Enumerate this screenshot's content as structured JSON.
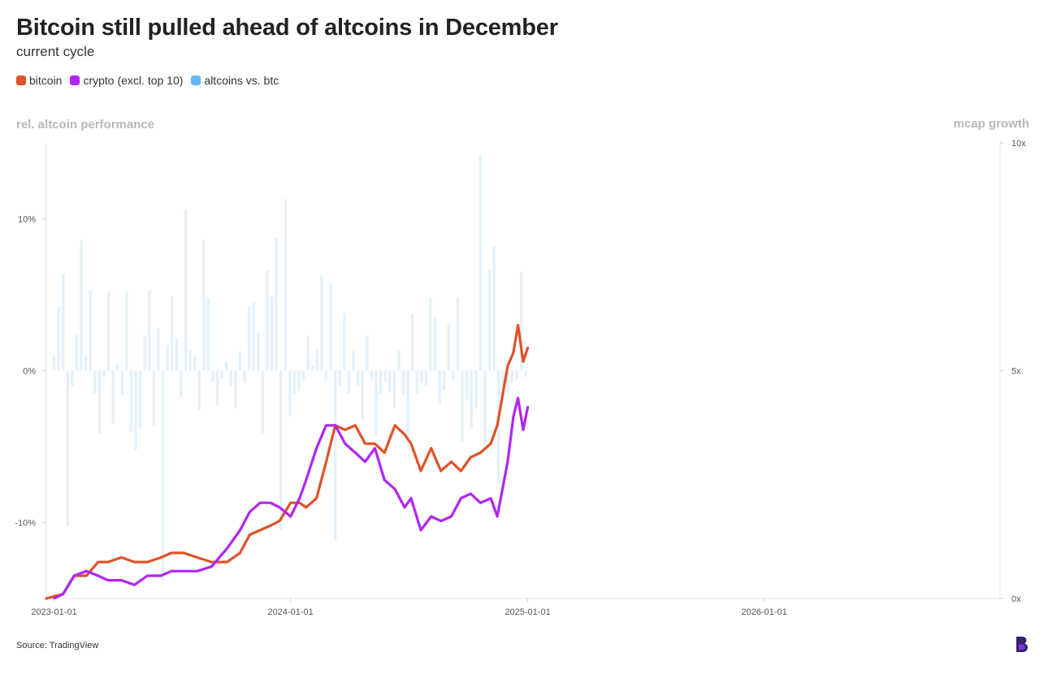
{
  "title": "Bitcoin still pulled ahead of altcoins in December",
  "subtitle": "current cycle",
  "legend": [
    {
      "label": "bitcoin",
      "color": "#e0522a"
    },
    {
      "label": "crypto (excl. top 10)",
      "color": "#b026f2"
    },
    {
      "label": "altcoins vs. btc",
      "color": "#63b8f5"
    }
  ],
  "axis_title_left": "rel. altcoin performance",
  "axis_title_right": "mcap growth",
  "source": "Source: TradingView",
  "chart_data": {
    "type": "line",
    "x_ticks": [
      "2023-01-01",
      "2024-01-01",
      "2025-01-01",
      "2026-01-01"
    ],
    "xlim": [
      "2022-12-20",
      "2026-12-31"
    ],
    "left_axis": {
      "ticks": [
        "10%",
        "0%",
        "-10%"
      ],
      "tick_values": [
        10,
        0,
        -10
      ],
      "ylim": [
        -15,
        15
      ]
    },
    "right_axis": {
      "ticks": [
        "10x",
        "5x",
        "0x"
      ],
      "tick_values": [
        10,
        5,
        0
      ],
      "ylim": [
        0,
        10
      ]
    },
    "series": [
      {
        "name": "bitcoin",
        "axis": "right",
        "color": "#e0522a",
        "x": [
          "2022-12-20",
          "2023-01-15",
          "2023-02-01",
          "2023-02-20",
          "2023-03-10",
          "2023-03-25",
          "2023-04-15",
          "2023-05-05",
          "2023-05-25",
          "2023-06-15",
          "2023-07-01",
          "2023-07-20",
          "2023-08-10",
          "2023-09-01",
          "2023-09-25",
          "2023-10-15",
          "2023-10-30",
          "2023-11-15",
          "2023-12-01",
          "2023-12-15",
          "2024-01-01",
          "2024-01-15",
          "2024-01-25",
          "2024-02-10",
          "2024-02-25",
          "2024-03-10",
          "2024-03-25",
          "2024-04-10",
          "2024-04-25",
          "2024-05-10",
          "2024-05-25",
          "2024-06-10",
          "2024-06-25",
          "2024-07-05",
          "2024-07-20",
          "2024-08-05",
          "2024-08-20",
          "2024-09-05",
          "2024-09-20",
          "2024-10-05",
          "2024-10-20",
          "2024-11-05",
          "2024-11-15",
          "2024-12-01",
          "2024-12-10",
          "2024-12-17",
          "2024-12-25",
          "2025-01-01"
        ],
        "y": [
          0.0,
          0.1,
          0.5,
          0.5,
          0.8,
          0.8,
          0.9,
          0.8,
          0.8,
          0.9,
          1.0,
          1.0,
          0.9,
          0.8,
          0.8,
          1.0,
          1.4,
          1.5,
          1.6,
          1.7,
          2.1,
          2.1,
          2.0,
          2.2,
          3.0,
          3.8,
          3.7,
          3.8,
          3.4,
          3.4,
          3.2,
          3.8,
          3.6,
          3.4,
          2.8,
          3.3,
          2.8,
          3.0,
          2.8,
          3.1,
          3.2,
          3.4,
          3.8,
          5.1,
          5.4,
          6.0,
          5.2,
          5.5
        ]
      },
      {
        "name": "crypto (excl. top 10)",
        "axis": "right",
        "color": "#b026f2",
        "x": [
          "2023-01-01",
          "2023-01-15",
          "2023-02-01",
          "2023-02-20",
          "2023-03-10",
          "2023-03-25",
          "2023-04-15",
          "2023-05-05",
          "2023-05-25",
          "2023-06-15",
          "2023-07-01",
          "2023-07-20",
          "2023-08-10",
          "2023-09-01",
          "2023-09-25",
          "2023-10-15",
          "2023-10-30",
          "2023-11-15",
          "2023-12-01",
          "2023-12-15",
          "2024-01-01",
          "2024-01-15",
          "2024-01-25",
          "2024-02-10",
          "2024-02-25",
          "2024-03-10",
          "2024-03-25",
          "2024-04-10",
          "2024-04-25",
          "2024-05-10",
          "2024-05-25",
          "2024-06-10",
          "2024-06-25",
          "2024-07-05",
          "2024-07-20",
          "2024-08-05",
          "2024-08-20",
          "2024-09-05",
          "2024-09-20",
          "2024-10-05",
          "2024-10-20",
          "2024-11-05",
          "2024-11-15",
          "2024-12-01",
          "2024-12-10",
          "2024-12-17",
          "2024-12-25",
          "2025-01-01"
        ],
        "y": [
          0.0,
          0.1,
          0.5,
          0.6,
          0.5,
          0.4,
          0.4,
          0.3,
          0.5,
          0.5,
          0.6,
          0.6,
          0.6,
          0.7,
          1.1,
          1.5,
          1.9,
          2.1,
          2.1,
          2.0,
          1.8,
          2.2,
          2.6,
          3.3,
          3.8,
          3.8,
          3.4,
          3.2,
          3.0,
          3.3,
          2.6,
          2.4,
          2.0,
          2.2,
          1.5,
          1.8,
          1.7,
          1.8,
          2.2,
          2.3,
          2.1,
          2.2,
          1.8,
          3.0,
          4.0,
          4.4,
          3.7,
          4.2
        ]
      },
      {
        "name": "altcoins vs. btc",
        "axis": "left",
        "type": "bar",
        "color": "#e3f1fc",
        "x": [
          "2023-01-01",
          "2023-01-08",
          "2023-01-15",
          "2023-01-22",
          "2023-01-29",
          "2023-02-05",
          "2023-02-12",
          "2023-02-19",
          "2023-02-26",
          "2023-03-05",
          "2023-03-12",
          "2023-03-19",
          "2023-03-26",
          "2023-04-02",
          "2023-04-09",
          "2023-04-16",
          "2023-04-23",
          "2023-04-30",
          "2023-05-07",
          "2023-05-14",
          "2023-05-21",
          "2023-05-28",
          "2023-06-04",
          "2023-06-11",
          "2023-06-18",
          "2023-06-25",
          "2023-07-02",
          "2023-07-09",
          "2023-07-16",
          "2023-07-23",
          "2023-07-30",
          "2023-08-06",
          "2023-08-13",
          "2023-08-20",
          "2023-08-27",
          "2023-09-03",
          "2023-09-10",
          "2023-09-17",
          "2023-09-24",
          "2023-10-01",
          "2023-10-08",
          "2023-10-15",
          "2023-10-22",
          "2023-10-29",
          "2023-11-05",
          "2023-11-12",
          "2023-11-19",
          "2023-11-26",
          "2023-12-03",
          "2023-12-10",
          "2023-12-17",
          "2023-12-24",
          "2023-12-31",
          "2024-01-07",
          "2024-01-14",
          "2024-01-21",
          "2024-01-28",
          "2024-02-04",
          "2024-02-11",
          "2024-02-18",
          "2024-02-25",
          "2024-03-03",
          "2024-03-10",
          "2024-03-17",
          "2024-03-24",
          "2024-03-31",
          "2024-04-07",
          "2024-04-14",
          "2024-04-21",
          "2024-04-28",
          "2024-05-05",
          "2024-05-12",
          "2024-05-19",
          "2024-05-26",
          "2024-06-02",
          "2024-06-09",
          "2024-06-16",
          "2024-06-23",
          "2024-06-30",
          "2024-07-07",
          "2024-07-14",
          "2024-07-21",
          "2024-07-28",
          "2024-08-04",
          "2024-08-11",
          "2024-08-18",
          "2024-08-25",
          "2024-09-01",
          "2024-09-08",
          "2024-09-15",
          "2024-09-22",
          "2024-09-29",
          "2024-10-06",
          "2024-10-13",
          "2024-10-20",
          "2024-10-27",
          "2024-11-03",
          "2024-11-10",
          "2024-11-17",
          "2024-11-24",
          "2024-12-01",
          "2024-12-08",
          "2024-12-15",
          "2024-12-22",
          "2024-12-29"
        ],
        "values": [
          1.0,
          4.2,
          6.4,
          -10.2,
          -1.0,
          2.4,
          8.6,
          1.0,
          5.3,
          -1.5,
          -4.2,
          -0.4,
          5.2,
          -3.5,
          0.5,
          -1.6,
          5.2,
          -4.0,
          -5.2,
          -3.8,
          2.3,
          5.3,
          -3.6,
          2.8,
          -13.8,
          1.7,
          4.9,
          2.2,
          -1.8,
          10.6,
          1.3,
          1.0,
          -2.6,
          8.6,
          4.8,
          -0.7,
          -2.3,
          -0.5,
          0.6,
          -1.0,
          -2.5,
          1.3,
          -0.8,
          4.2,
          4.5,
          2.5,
          -4.1,
          6.6,
          4.9,
          8.8,
          -10.5,
          11.3,
          -3.0,
          -1.5,
          -1.3,
          -0.6,
          2.3,
          0.3,
          1.4,
          6.2,
          -0.6,
          5.8,
          -11.2,
          -1.0,
          3.8,
          -1.5,
          1.3,
          -1.0,
          -3.2,
          2.3,
          -0.6,
          -4.3,
          -1.5,
          -0.7,
          -1.4,
          -2.5,
          1.3,
          -1.6,
          -4.6,
          3.8,
          -1.5,
          -0.8,
          -1.0,
          4.8,
          3.5,
          -2.2,
          -1.3,
          3.1,
          -0.6,
          4.8,
          -4.7,
          -1.9,
          -3.8,
          -2.5,
          14.2,
          -4.8,
          6.6,
          8.2,
          -7.4,
          -1.6,
          -1.5,
          -0.8,
          -0.6,
          6.5,
          -0.4
        ]
      }
    ],
    "grid": false,
    "legend_position": "top-left"
  }
}
